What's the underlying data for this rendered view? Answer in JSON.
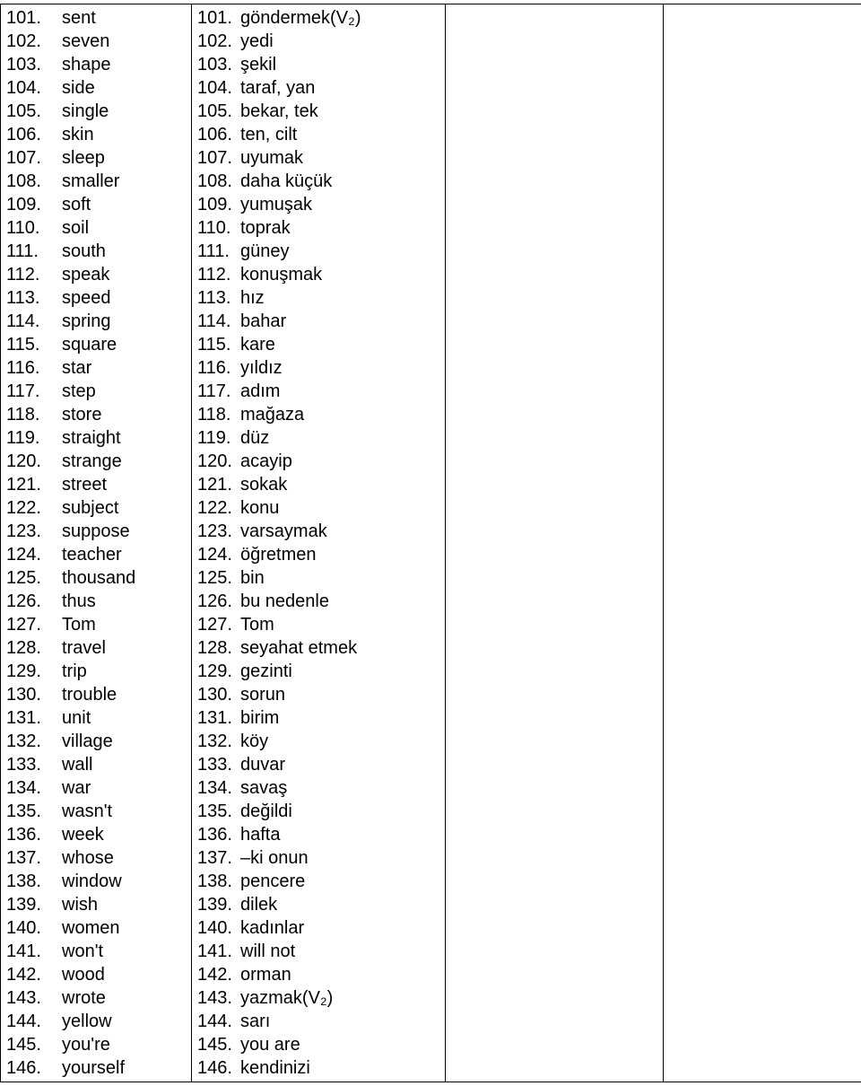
{
  "vocab": {
    "rows": [
      {
        "n": "101.",
        "en": "sent",
        "tr": "göndermek(V₂)"
      },
      {
        "n": "102.",
        "en": "seven",
        "tr": "yedi"
      },
      {
        "n": "103.",
        "en": "shape",
        "tr": "şekil"
      },
      {
        "n": "104.",
        "en": "side",
        "tr": "taraf, yan"
      },
      {
        "n": "105.",
        "en": "single",
        "tr": "bekar, tek"
      },
      {
        "n": "106.",
        "en": "skin",
        "tr": "ten, cilt"
      },
      {
        "n": "107.",
        "en": "sleep",
        "tr": "uyumak"
      },
      {
        "n": "108.",
        "en": "smaller",
        "tr": "daha küçük"
      },
      {
        "n": "109.",
        "en": "soft",
        "tr": "yumuşak"
      },
      {
        "n": "110.",
        "en": "soil",
        "tr": "toprak"
      },
      {
        "n": "111.",
        "en": "south",
        "tr": "güney"
      },
      {
        "n": "112.",
        "en": "speak",
        "tr": "konuşmak"
      },
      {
        "n": "113.",
        "en": "speed",
        "tr": "hız"
      },
      {
        "n": "114.",
        "en": "spring",
        "tr": "bahar"
      },
      {
        "n": "115.",
        "en": "square",
        "tr": "kare"
      },
      {
        "n": "116.",
        "en": "star",
        "tr": "yıldız"
      },
      {
        "n": "117.",
        "en": "step",
        "tr": "adım"
      },
      {
        "n": "118.",
        "en": "store",
        "tr": "mağaza"
      },
      {
        "n": "119.",
        "en": "straight",
        "tr": "düz"
      },
      {
        "n": "120.",
        "en": "strange",
        "tr": "acayip"
      },
      {
        "n": "121.",
        "en": "street",
        "tr": "sokak"
      },
      {
        "n": "122.",
        "en": "subject",
        "tr": "konu"
      },
      {
        "n": "123.",
        "en": "suppose",
        "tr": "varsaymak"
      },
      {
        "n": "124.",
        "en": "teacher",
        "tr": "öğretmen"
      },
      {
        "n": "125.",
        "en": "thousand",
        "tr": "bin"
      },
      {
        "n": "126.",
        "en": "thus",
        "tr": "bu nedenle"
      },
      {
        "n": "127.",
        "en": "Tom",
        "tr": "Tom"
      },
      {
        "n": "128.",
        "en": "travel",
        "tr": "seyahat etmek"
      },
      {
        "n": "129.",
        "en": "trip",
        "tr": "gezinti"
      },
      {
        "n": "130.",
        "en": "trouble",
        "tr": "sorun"
      },
      {
        "n": "131.",
        "en": "unit",
        "tr": "birim"
      },
      {
        "n": "132.",
        "en": "village",
        "tr": "köy"
      },
      {
        "n": "133.",
        "en": "wall",
        "tr": "duvar"
      },
      {
        "n": "134.",
        "en": "war",
        "tr": "savaş"
      },
      {
        "n": "135.",
        "en": "wasn't",
        "tr": "değildi"
      },
      {
        "n": "136.",
        "en": "week",
        "tr": "hafta"
      },
      {
        "n": "137.",
        "en": "whose",
        "tr": "–ki onun"
      },
      {
        "n": "138.",
        "en": "window",
        "tr": "pencere"
      },
      {
        "n": "139.",
        "en": "wish",
        "tr": "dilek"
      },
      {
        "n": "140.",
        "en": "women",
        "tr": "kadınlar"
      },
      {
        "n": "141.",
        "en": "won't",
        "tr": "will not"
      },
      {
        "n": "142.",
        "en": "wood",
        "tr": "orman"
      },
      {
        "n": "143.",
        "en": "wrote",
        "tr": "yazmak(V₂)"
      },
      {
        "n": "144.",
        "en": "yellow",
        "tr": "sarı"
      },
      {
        "n": "145.",
        "en": "you're",
        "tr": "you are"
      },
      {
        "n": "146.",
        "en": "yourself",
        "tr": "kendinizi"
      }
    ]
  }
}
